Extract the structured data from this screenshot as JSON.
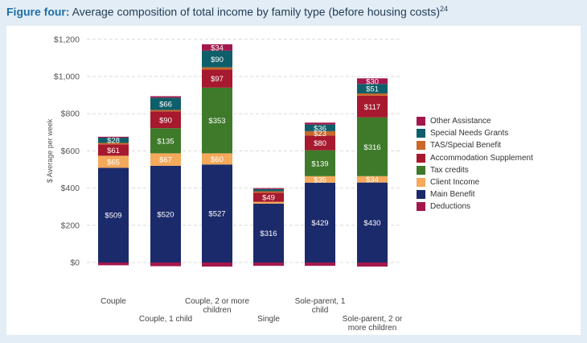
{
  "figure": {
    "label": "Figure four:",
    "title": "Average composition of total income by family type (before housing costs)",
    "footnote": "24"
  },
  "chart_data": {
    "type": "stacked-bar",
    "ylabel": "$ Average per week",
    "ylim": [
      -30,
      1200
    ],
    "yticks": [
      0,
      200,
      400,
      600,
      800,
      1000,
      1200
    ],
    "ytick_labels": [
      "$0",
      "$200",
      "$400",
      "$600",
      "$800",
      "$1,000",
      "$1,200"
    ],
    "categories": [
      [
        "Couple"
      ],
      [
        "Couple, 1 child"
      ],
      [
        "Couple, 2 or more",
        "children"
      ],
      [
        "Single"
      ],
      [
        "Sole-parent, 1",
        "child"
      ],
      [
        "Sole-parent, 2 or",
        "more children"
      ]
    ],
    "series": [
      {
        "name": "Main Benefit",
        "color": "#1b2a6b",
        "values": [
          509,
          520,
          527,
          316,
          429,
          430
        ],
        "labels": [
          "$509",
          "$520",
          "$527",
          "$316",
          "$429",
          "$430"
        ]
      },
      {
        "name": "Client Income",
        "color": "#f5a95a",
        "values": [
          65,
          67,
          60,
          10,
          35,
          34
        ],
        "labels": [
          "$65",
          "$67",
          "$60",
          "",
          "$35",
          "$34"
        ]
      },
      {
        "name": "Tax credits",
        "color": "#3e7a2a",
        "values": [
          0,
          135,
          353,
          0,
          139,
          316
        ],
        "labels": [
          "",
          "$135",
          "$353",
          "",
          "$139",
          "$316"
        ]
      },
      {
        "name": "Accommodation Supplement",
        "color": "#a6192e",
        "values": [
          61,
          90,
          97,
          49,
          80,
          117
        ],
        "labels": [
          "$61",
          "$90",
          "$97",
          "$49",
          "$80",
          "$117"
        ]
      },
      {
        "name": "TAS/Special Benefit",
        "color": "#c8682a",
        "values": [
          8,
          8,
          12,
          8,
          23,
          12
        ],
        "labels": [
          "",
          "",
          "",
          "",
          "$23",
          ""
        ]
      },
      {
        "name": "Special Needs Grants",
        "color": "#0e5f6a",
        "values": [
          28,
          66,
          90,
          12,
          36,
          51
        ],
        "labels": [
          "$28",
          "$66",
          "$90",
          "",
          "$36",
          "$51"
        ]
      },
      {
        "name": "Other Assistance",
        "color": "#a3174d",
        "values": [
          5,
          8,
          34,
          5,
          10,
          30
        ],
        "labels": [
          "",
          "",
          "$34",
          "",
          "",
          "$30"
        ]
      },
      {
        "name": "Deductions",
        "color": "#a3174d",
        "values": [
          -15,
          -20,
          -22,
          -18,
          -18,
          -22
        ],
        "labels": [
          "",
          "",
          "",
          "",
          "",
          ""
        ]
      }
    ],
    "legend_order": [
      "Other Assistance",
      "Special Needs Grants",
      "TAS/Special Benefit",
      "Accommodation Supplement",
      "Tax credits",
      "Client Income",
      "Main Benefit",
      "Deductions"
    ],
    "legend_position": "right"
  }
}
